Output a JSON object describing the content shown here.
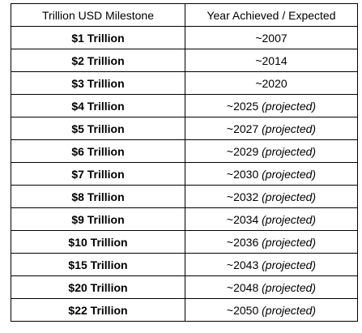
{
  "table": {
    "headers": [
      "Trillion USD Milestone",
      "Year Achieved / Expected"
    ],
    "rows": [
      {
        "milestone": "$1 Trillion",
        "year": "~2007",
        "note": ""
      },
      {
        "milestone": "$2 Trillion",
        "year": "~2014",
        "note": ""
      },
      {
        "milestone": "$3 Trillion",
        "year": "~2020",
        "note": ""
      },
      {
        "milestone": "$4 Trillion",
        "year": "~2025",
        "note": "(projected)"
      },
      {
        "milestone": "$5 Trillion",
        "year": "~2027",
        "note": "(projected)"
      },
      {
        "milestone": "$6 Trillion",
        "year": "~2029",
        "note": "(projected)"
      },
      {
        "milestone": "$7 Trillion",
        "year": "~2030",
        "note": "(projected)"
      },
      {
        "milestone": "$8 Trillion",
        "year": "~2032",
        "note": "(projected)"
      },
      {
        "milestone": "$9 Trillion",
        "year": "~2034",
        "note": "(projected)"
      },
      {
        "milestone": "$10 Trillion",
        "year": "~2036",
        "note": "(projected)"
      },
      {
        "milestone": "$15 Trillion",
        "year": "~2043",
        "note": "(projected)"
      },
      {
        "milestone": "$20 Trillion",
        "year": "~2048",
        "note": "(projected)"
      },
      {
        "milestone": "$22 Trillion",
        "year": "~2050",
        "note": "(projected)"
      }
    ]
  }
}
